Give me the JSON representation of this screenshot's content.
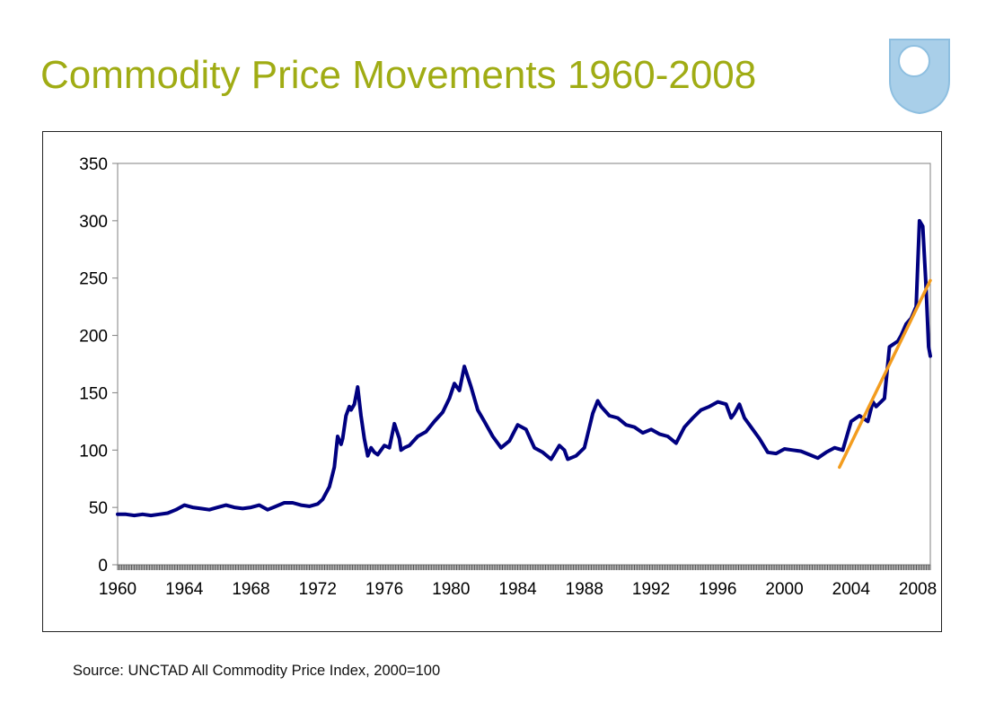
{
  "slide": {
    "title": "Commodity Price Movements 1960-2008",
    "title_color": "#a0ac14",
    "source": "Source: UNCTAD All Commodity Price Index, 2000=100"
  },
  "logo": {
    "icon": "shield-logo-icon",
    "color": "#a9cfe9"
  },
  "chart_data": {
    "type": "line",
    "title": "",
    "xlabel": "",
    "ylabel": "",
    "xlim": [
      1960,
      2008.75
    ],
    "ylim": [
      0,
      350
    ],
    "y_ticks": [
      0,
      50,
      100,
      150,
      200,
      250,
      300,
      350
    ],
    "x_tick_labels": [
      "1960",
      "1964",
      "1968",
      "1972",
      "1976",
      "1980",
      "1984",
      "1988",
      "1992",
      "1996",
      "2000",
      "2004",
      "2008"
    ],
    "grid": false,
    "legend": "none",
    "series": [
      {
        "color": "#000080",
        "x": [
          1960.0,
          1960.5,
          1961.0,
          1961.5,
          1962.0,
          1962.5,
          1963.0,
          1963.5,
          1964.0,
          1964.5,
          1965.0,
          1965.5,
          1966.0,
          1966.5,
          1967.0,
          1967.5,
          1968.0,
          1968.5,
          1969.0,
          1969.5,
          1970.0,
          1970.5,
          1971.0,
          1971.5,
          1972.0,
          1972.3,
          1972.7,
          1973.0,
          1973.2,
          1973.4,
          1973.5,
          1973.7,
          1973.9,
          1974.0,
          1974.2,
          1974.4,
          1974.6,
          1974.8,
          1975.0,
          1975.2,
          1975.4,
          1975.6,
          1975.8,
          1976.0,
          1976.3,
          1976.6,
          1976.9,
          1977.0,
          1977.2,
          1977.5,
          1978.0,
          1978.5,
          1979.0,
          1979.5,
          1979.9,
          1980.2,
          1980.5,
          1980.8,
          1981.2,
          1981.6,
          1982.0,
          1982.5,
          1983.0,
          1983.5,
          1984.0,
          1984.5,
          1985.0,
          1985.5,
          1986.0,
          1986.5,
          1986.8,
          1987.0,
          1987.5,
          1988.0,
          1988.3,
          1988.5,
          1988.8,
          1989.0,
          1989.5,
          1990.0,
          1990.5,
          1991.0,
          1991.5,
          1992.0,
          1992.5,
          1993.0,
          1993.5,
          1994.0,
          1994.5,
          1995.0,
          1995.5,
          1996.0,
          1996.5,
          1996.8,
          1997.0,
          1997.3,
          1997.6,
          1998.0,
          1998.5,
          1999.0,
          1999.5,
          2000.0,
          2000.5,
          2001.0,
          2001.5,
          2002.0,
          2002.5,
          2003.0,
          2003.5,
          2004.0,
          2004.5,
          2005.0,
          2005.3,
          2005.5,
          2006.0,
          2006.3,
          2006.5,
          2006.8,
          2007.0,
          2007.3,
          2007.6,
          2007.9,
          2008.1,
          2008.3,
          2008.5,
          2008.65,
          2008.75
        ],
        "values": [
          44,
          44,
          43,
          44,
          43,
          44,
          45,
          48,
          52,
          50,
          49,
          48,
          50,
          52,
          50,
          49,
          50,
          52,
          48,
          51,
          54,
          54,
          52,
          51,
          53,
          57,
          68,
          85,
          112,
          105,
          110,
          130,
          138,
          135,
          140,
          155,
          130,
          110,
          95,
          102,
          98,
          96,
          100,
          104,
          102,
          123,
          110,
          100,
          102,
          104,
          112,
          116,
          125,
          133,
          145,
          158,
          152,
          173,
          155,
          135,
          125,
          112,
          102,
          108,
          122,
          118,
          102,
          98,
          92,
          104,
          100,
          92,
          95,
          102,
          120,
          132,
          143,
          138,
          130,
          128,
          122,
          120,
          115,
          118,
          114,
          112,
          106,
          120,
          128,
          135,
          138,
          142,
          140,
          128,
          132,
          140,
          128,
          120,
          110,
          98,
          97,
          101,
          100,
          99,
          96,
          93,
          98,
          102,
          100,
          125,
          130,
          125,
          142,
          138,
          145,
          190,
          192,
          195,
          200,
          210,
          215,
          225,
          300,
          295,
          240,
          190,
          182
        ]
      },
      {
        "color": "#f39c1e",
        "x": [
          2003.3,
          2008.75
        ],
        "values": [
          85,
          248
        ]
      }
    ]
  }
}
